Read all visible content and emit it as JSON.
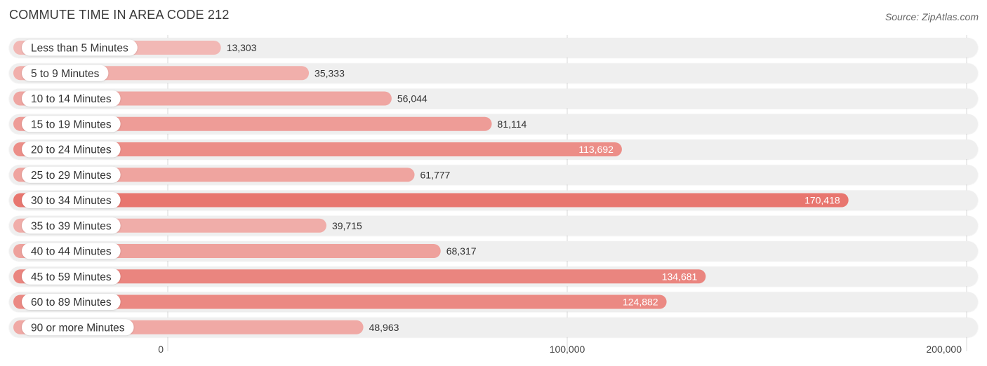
{
  "title": "COMMUTE TIME IN AREA CODE 212",
  "source": "Source: ZipAtlas.com",
  "chart_data": {
    "type": "bar",
    "orientation": "horizontal",
    "title": "COMMUTE TIME IN AREA CODE 212",
    "categories": [
      "Less than 5 Minutes",
      "5 to 9 Minutes",
      "10 to 14 Minutes",
      "15 to 19 Minutes",
      "20 to 24 Minutes",
      "25 to 29 Minutes",
      "30 to 34 Minutes",
      "35 to 39 Minutes",
      "40 to 44 Minutes",
      "45 to 59 Minutes",
      "60 to 89 Minutes",
      "90 or more Minutes"
    ],
    "values": [
      13303,
      35333,
      56044,
      81114,
      113692,
      61777,
      170418,
      39715,
      68317,
      134681,
      124882,
      48963
    ],
    "value_labels": [
      "13,303",
      "35,333",
      "56,044",
      "81,114",
      "113,692",
      "61,777",
      "170,418",
      "39,715",
      "68,317",
      "134,681",
      "124,882",
      "48,963"
    ],
    "xlim": [
      0,
      200000
    ],
    "xticks": [
      0,
      100000,
      200000
    ],
    "xtick_labels": [
      "0",
      "100,000",
      "200,000"
    ],
    "xlabel": "",
    "ylabel": "",
    "grid": true,
    "colors": {
      "bar_low": "#f2b8b5",
      "bar_high": "#e8766f",
      "track": "#efefef",
      "label_pill": "#ffffff"
    }
  }
}
